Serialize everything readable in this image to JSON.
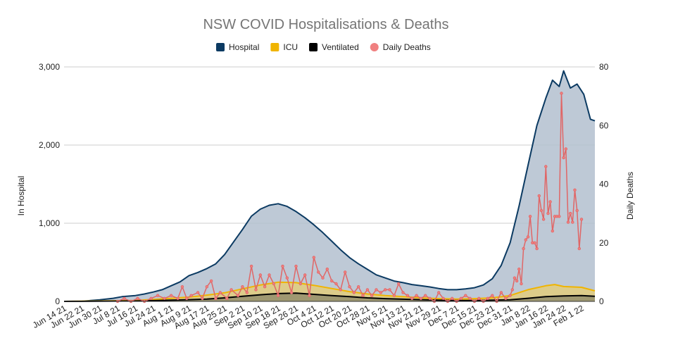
{
  "chart_data": {
    "type": "area",
    "title": "NSW COVID Hospitalisations & Deaths",
    "ylabel": "In Hospital",
    "y2label": "Daily Deaths",
    "ylim": [
      0,
      3000
    ],
    "y2lim": [
      0,
      80
    ],
    "yticks": [
      "0",
      "1,000",
      "2,000",
      "3,000"
    ],
    "y2ticks": [
      "0",
      "20",
      "40",
      "60",
      "80"
    ],
    "x_start": "2021-06-14",
    "x_end": "2022-02-07",
    "xticks": [
      "Jun 14 21",
      "Jun 22 21",
      "Jun 30 21",
      "Jul 8 21",
      "Jul 16 21",
      "Jul 24 21",
      "Aug 1 21",
      "Aug 9 21",
      "Aug 17 21",
      "Aug 25 21",
      "Sep 2 21",
      "Sep 10 21",
      "Sep 18 21",
      "Sep 26 21",
      "Oct 4 21",
      "Oct 12 21",
      "Oct 20 21",
      "Oct 28 21",
      "Nov 5 21",
      "Nov 13 21",
      "Nov 21 21",
      "Nov 29 21",
      "Dec 7 21",
      "Dec 15 21",
      "Dec 23 21",
      "Dec 31 21",
      "Jan 8 22",
      "Jan 16 22",
      "Jan 24 22",
      "Feb 1 22"
    ],
    "grid": true,
    "legend_position": "top",
    "series": [
      {
        "name": "Hospital",
        "axis": "left",
        "color": "#0b3a62",
        "fill": "#b3c0cf",
        "points": [
          [
            "2021-06-14",
            0
          ],
          [
            "2021-06-22",
            3
          ],
          [
            "2021-06-30",
            20
          ],
          [
            "2021-07-06",
            40
          ],
          [
            "2021-07-10",
            60
          ],
          [
            "2021-07-16",
            75
          ],
          [
            "2021-07-20",
            95
          ],
          [
            "2021-07-24",
            120
          ],
          [
            "2021-07-28",
            150
          ],
          [
            "2021-08-01",
            200
          ],
          [
            "2021-08-05",
            250
          ],
          [
            "2021-08-09",
            330
          ],
          [
            "2021-08-13",
            370
          ],
          [
            "2021-08-17",
            420
          ],
          [
            "2021-08-21",
            480
          ],
          [
            "2021-08-25",
            600
          ],
          [
            "2021-08-29",
            760
          ],
          [
            "2021-09-02",
            920
          ],
          [
            "2021-09-06",
            1090
          ],
          [
            "2021-09-10",
            1180
          ],
          [
            "2021-09-14",
            1230
          ],
          [
            "2021-09-18",
            1250
          ],
          [
            "2021-09-22",
            1215
          ],
          [
            "2021-09-26",
            1150
          ],
          [
            "2021-09-30",
            1070
          ],
          [
            "2021-10-04",
            980
          ],
          [
            "2021-10-08",
            880
          ],
          [
            "2021-10-12",
            770
          ],
          [
            "2021-10-16",
            660
          ],
          [
            "2021-10-20",
            560
          ],
          [
            "2021-10-24",
            480
          ],
          [
            "2021-10-28",
            410
          ],
          [
            "2021-11-01",
            340
          ],
          [
            "2021-11-05",
            300
          ],
          [
            "2021-11-09",
            260
          ],
          [
            "2021-11-13",
            240
          ],
          [
            "2021-11-17",
            215
          ],
          [
            "2021-11-21",
            200
          ],
          [
            "2021-11-25",
            185
          ],
          [
            "2021-11-29",
            165
          ],
          [
            "2021-12-03",
            150
          ],
          [
            "2021-12-07",
            150
          ],
          [
            "2021-12-11",
            160
          ],
          [
            "2021-12-15",
            175
          ],
          [
            "2021-12-19",
            210
          ],
          [
            "2021-12-23",
            290
          ],
          [
            "2021-12-27",
            460
          ],
          [
            "2021-12-31",
            750
          ],
          [
            "2022-01-04",
            1220
          ],
          [
            "2022-01-08",
            1740
          ],
          [
            "2022-01-12",
            2250
          ],
          [
            "2022-01-16",
            2600
          ],
          [
            "2022-01-19",
            2830
          ],
          [
            "2022-01-22",
            2750
          ],
          [
            "2022-01-24",
            2950
          ],
          [
            "2022-01-27",
            2730
          ],
          [
            "2022-01-30",
            2780
          ],
          [
            "2022-02-02",
            2650
          ],
          [
            "2022-02-05",
            2330
          ],
          [
            "2022-02-07",
            2310
          ]
        ]
      },
      {
        "name": "ICU",
        "axis": "left",
        "color": "#f0b400",
        "fill": "#e3cd7d",
        "points": [
          [
            "2021-06-14",
            0
          ],
          [
            "2021-06-30",
            5
          ],
          [
            "2021-07-16",
            12
          ],
          [
            "2021-07-24",
            25
          ],
          [
            "2021-08-01",
            40
          ],
          [
            "2021-08-09",
            55
          ],
          [
            "2021-08-17",
            80
          ],
          [
            "2021-08-25",
            110
          ],
          [
            "2021-09-02",
            160
          ],
          [
            "2021-09-10",
            210
          ],
          [
            "2021-09-18",
            245
          ],
          [
            "2021-09-26",
            240
          ],
          [
            "2021-10-04",
            205
          ],
          [
            "2021-10-12",
            165
          ],
          [
            "2021-10-20",
            125
          ],
          [
            "2021-10-28",
            95
          ],
          [
            "2021-11-05",
            75
          ],
          [
            "2021-11-13",
            60
          ],
          [
            "2021-11-21",
            45
          ],
          [
            "2021-11-29",
            35
          ],
          [
            "2021-12-07",
            30
          ],
          [
            "2021-12-15",
            35
          ],
          [
            "2021-12-23",
            45
          ],
          [
            "2021-12-31",
            75
          ],
          [
            "2022-01-08",
            150
          ],
          [
            "2022-01-16",
            200
          ],
          [
            "2022-01-20",
            215
          ],
          [
            "2022-01-24",
            190
          ],
          [
            "2022-02-01",
            180
          ],
          [
            "2022-02-07",
            135
          ]
        ]
      },
      {
        "name": "Ventilated",
        "axis": "left",
        "color": "#000000",
        "fill": "#948e6c",
        "points": [
          [
            "2021-06-14",
            0
          ],
          [
            "2021-06-30",
            2
          ],
          [
            "2021-07-16",
            5
          ],
          [
            "2021-07-24",
            10
          ],
          [
            "2021-08-01",
            15
          ],
          [
            "2021-08-09",
            22
          ],
          [
            "2021-08-17",
            30
          ],
          [
            "2021-08-25",
            45
          ],
          [
            "2021-09-02",
            65
          ],
          [
            "2021-09-10",
            85
          ],
          [
            "2021-09-18",
            100
          ],
          [
            "2021-09-26",
            105
          ],
          [
            "2021-10-04",
            90
          ],
          [
            "2021-10-12",
            75
          ],
          [
            "2021-10-20",
            60
          ],
          [
            "2021-10-28",
            45
          ],
          [
            "2021-11-05",
            35
          ],
          [
            "2021-11-13",
            28
          ],
          [
            "2021-11-21",
            22
          ],
          [
            "2021-11-29",
            15
          ],
          [
            "2021-12-07",
            12
          ],
          [
            "2021-12-15",
            12
          ],
          [
            "2021-12-23",
            15
          ],
          [
            "2021-12-31",
            20
          ],
          [
            "2022-01-08",
            40
          ],
          [
            "2022-01-16",
            60
          ],
          [
            "2022-01-24",
            70
          ],
          [
            "2022-02-01",
            75
          ],
          [
            "2022-02-07",
            65
          ]
        ]
      },
      {
        "name": "Daily Deaths",
        "axis": "right",
        "color": "#e06666",
        "marker_color": "#f08080",
        "points": [
          [
            "2021-07-08",
            0
          ],
          [
            "2021-07-11",
            1
          ],
          [
            "2021-07-14",
            0
          ],
          [
            "2021-07-17",
            1
          ],
          [
            "2021-07-20",
            0
          ],
          [
            "2021-07-23",
            1
          ],
          [
            "2021-07-26",
            2
          ],
          [
            "2021-07-29",
            1
          ],
          [
            "2021-08-01",
            2
          ],
          [
            "2021-08-04",
            1
          ],
          [
            "2021-08-06",
            5
          ],
          [
            "2021-08-08",
            1
          ],
          [
            "2021-08-10",
            2
          ],
          [
            "2021-08-13",
            3
          ],
          [
            "2021-08-15",
            1
          ],
          [
            "2021-08-17",
            5
          ],
          [
            "2021-08-19",
            7
          ],
          [
            "2021-08-21",
            1
          ],
          [
            "2021-08-23",
            3
          ],
          [
            "2021-08-26",
            1
          ],
          [
            "2021-08-28",
            4
          ],
          [
            "2021-08-31",
            2
          ],
          [
            "2021-09-02",
            5
          ],
          [
            "2021-09-04",
            3
          ],
          [
            "2021-09-06",
            12
          ],
          [
            "2021-09-08",
            4
          ],
          [
            "2021-09-10",
            9
          ],
          [
            "2021-09-12",
            5
          ],
          [
            "2021-09-14",
            9
          ],
          [
            "2021-09-16",
            6
          ],
          [
            "2021-09-18",
            2
          ],
          [
            "2021-09-20",
            12
          ],
          [
            "2021-09-22",
            8
          ],
          [
            "2021-09-24",
            3
          ],
          [
            "2021-09-26",
            12
          ],
          [
            "2021-09-28",
            6
          ],
          [
            "2021-09-30",
            9
          ],
          [
            "2021-10-02",
            2
          ],
          [
            "2021-10-04",
            15
          ],
          [
            "2021-10-06",
            10
          ],
          [
            "2021-10-08",
            8
          ],
          [
            "2021-10-10",
            11
          ],
          [
            "2021-10-12",
            7
          ],
          [
            "2021-10-14",
            6
          ],
          [
            "2021-10-16",
            4
          ],
          [
            "2021-10-18",
            10
          ],
          [
            "2021-10-20",
            5
          ],
          [
            "2021-10-22",
            3
          ],
          [
            "2021-10-24",
            5
          ],
          [
            "2021-10-26",
            2
          ],
          [
            "2021-10-28",
            4
          ],
          [
            "2021-10-30",
            2
          ],
          [
            "2021-11-01",
            4
          ],
          [
            "2021-11-03",
            3
          ],
          [
            "2021-11-05",
            4
          ],
          [
            "2021-11-07",
            4
          ],
          [
            "2021-11-09",
            2
          ],
          [
            "2021-11-11",
            6
          ],
          [
            "2021-11-13",
            3
          ],
          [
            "2021-11-15",
            2
          ],
          [
            "2021-11-17",
            1
          ],
          [
            "2021-11-19",
            2
          ],
          [
            "2021-11-21",
            1
          ],
          [
            "2021-11-23",
            2
          ],
          [
            "2021-11-25",
            1
          ],
          [
            "2021-11-27",
            0
          ],
          [
            "2021-11-29",
            3
          ],
          [
            "2021-12-01",
            1
          ],
          [
            "2021-12-03",
            0
          ],
          [
            "2021-12-05",
            1
          ],
          [
            "2021-12-07",
            0
          ],
          [
            "2021-12-09",
            1
          ],
          [
            "2021-12-11",
            2
          ],
          [
            "2021-12-13",
            1
          ],
          [
            "2021-12-15",
            0
          ],
          [
            "2021-12-17",
            1
          ],
          [
            "2021-12-19",
            0
          ],
          [
            "2021-12-21",
            1
          ],
          [
            "2021-12-23",
            2
          ],
          [
            "2021-12-25",
            0
          ],
          [
            "2021-12-27",
            3
          ],
          [
            "2021-12-29",
            1
          ],
          [
            "2021-12-31",
            2
          ],
          [
            "2022-01-01",
            4
          ],
          [
            "2022-01-02",
            8
          ],
          [
            "2022-01-03",
            7
          ],
          [
            "2022-01-04",
            11
          ],
          [
            "2022-01-05",
            6
          ],
          [
            "2022-01-06",
            18
          ],
          [
            "2022-01-07",
            21
          ],
          [
            "2022-01-08",
            22
          ],
          [
            "2022-01-09",
            29
          ],
          [
            "2022-01-10",
            20
          ],
          [
            "2022-01-11",
            20
          ],
          [
            "2022-01-12",
            18
          ],
          [
            "2022-01-13",
            36
          ],
          [
            "2022-01-14",
            31
          ],
          [
            "2022-01-15",
            28
          ],
          [
            "2022-01-16",
            46
          ],
          [
            "2022-01-17",
            30
          ],
          [
            "2022-01-18",
            34
          ],
          [
            "2022-01-19",
            24
          ],
          [
            "2022-01-20",
            29
          ],
          [
            "2022-01-21",
            29
          ],
          [
            "2022-01-22",
            29
          ],
          [
            "2022-01-23",
            71
          ],
          [
            "2022-01-24",
            49
          ],
          [
            "2022-01-25",
            52
          ],
          [
            "2022-01-26",
            27
          ],
          [
            "2022-01-27",
            30
          ],
          [
            "2022-01-28",
            27
          ],
          [
            "2022-01-29",
            38
          ],
          [
            "2022-01-30",
            31
          ],
          [
            "2022-01-31",
            18
          ],
          [
            "2022-02-01",
            28
          ]
        ]
      }
    ]
  }
}
